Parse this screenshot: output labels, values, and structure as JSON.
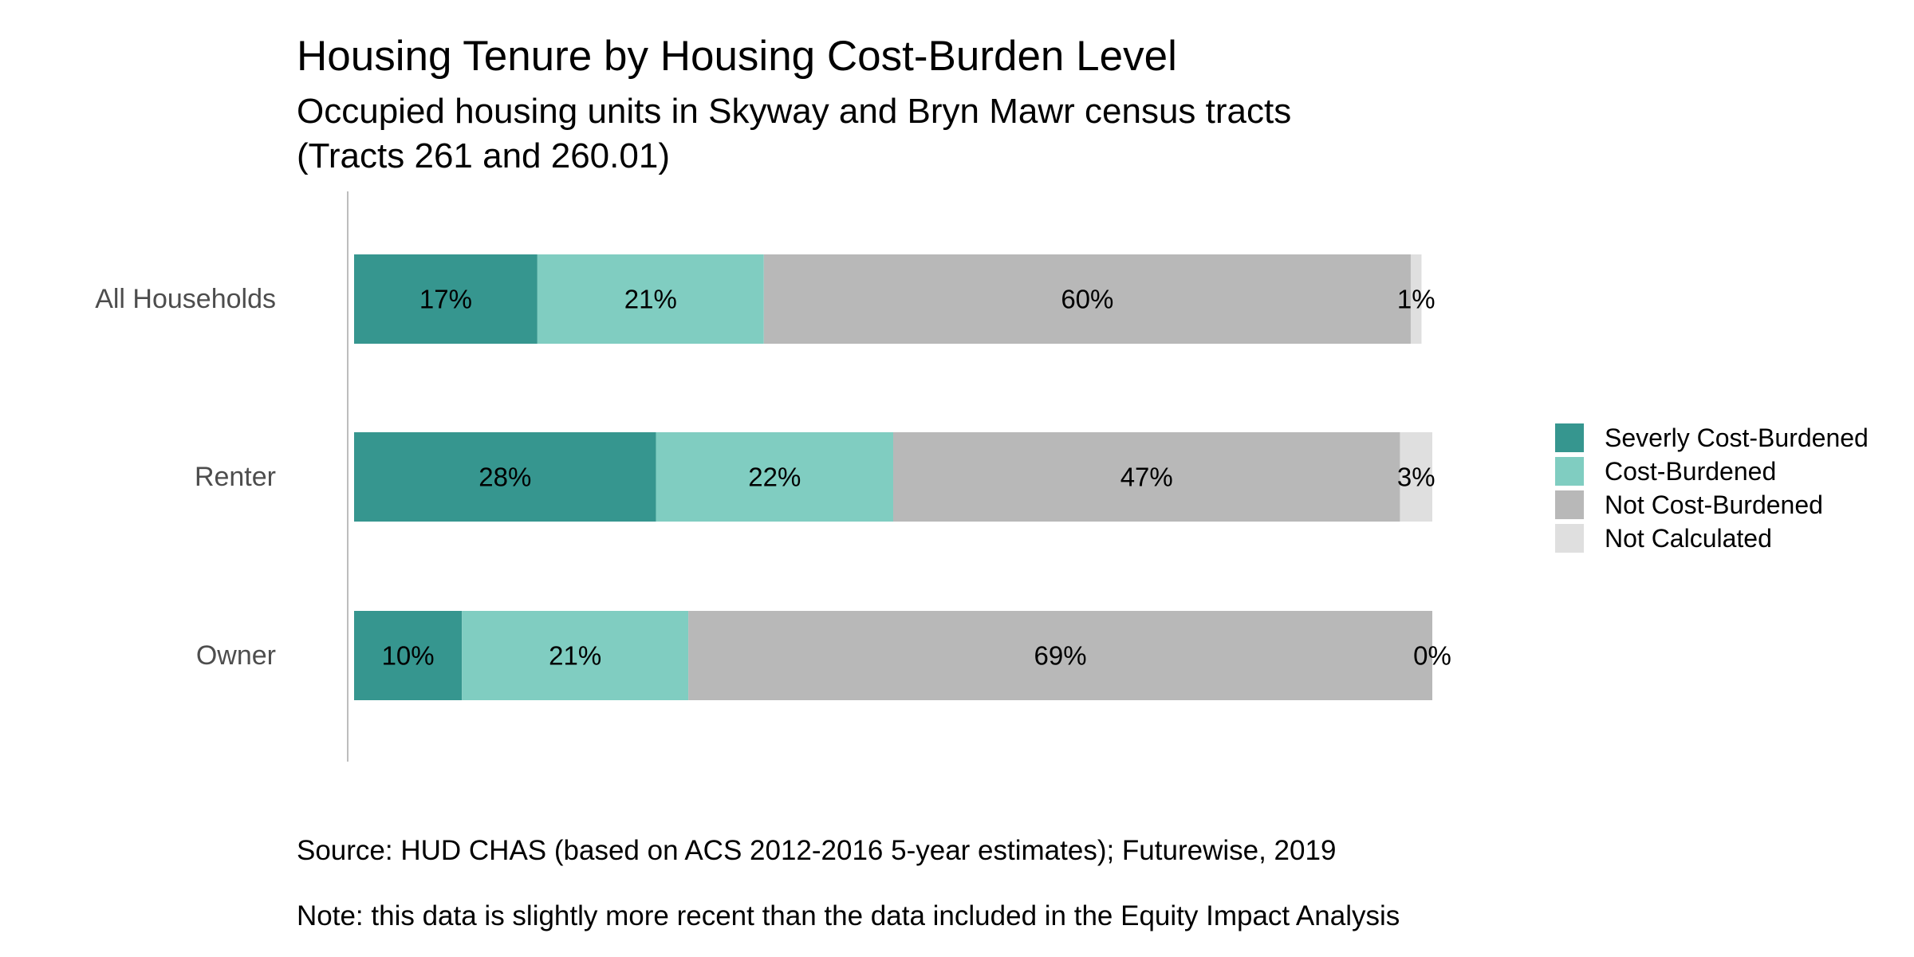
{
  "chart_data": {
    "type": "bar",
    "orientation": "horizontal",
    "stacked": true,
    "title": "Housing Tenure by Housing Cost-Burden Level",
    "subtitle": [
      "Occupied housing units in Skyway and Bryn Mawr census tracts",
      "(Tracts 261 and 260.01)"
    ],
    "categories": [
      "All Households",
      "Renter",
      "Owner"
    ],
    "series": [
      {
        "name": "Severly Cost-Burdened",
        "color": "#36968f",
        "values": [
          17,
          28,
          10
        ],
        "labels": [
          "17%",
          "28%",
          "10%"
        ]
      },
      {
        "name": "Cost-Burdened",
        "color": "#80cdc1",
        "values": [
          21,
          22,
          21
        ],
        "labels": [
          "21%",
          "22%",
          "21%"
        ]
      },
      {
        "name": "Not Cost-Burdened",
        "color": "#b8b8b8",
        "values": [
          60,
          47,
          69
        ],
        "labels": [
          "60%",
          "47%",
          "69%"
        ]
      },
      {
        "name": "Not Calculated",
        "color": "#dfdfdf",
        "values": [
          1,
          3,
          0
        ],
        "labels": [
          "1%",
          "3%",
          "0%"
        ]
      }
    ],
    "xlim": [
      0,
      100
    ],
    "grid": false,
    "legend": "right",
    "source": "Source: HUD CHAS (based on ACS 2012-2016 5-year estimates); Futurewise, 2019",
    "note": "Note: this data is slightly more recent than the data included in the Equity Impact Analysis"
  }
}
